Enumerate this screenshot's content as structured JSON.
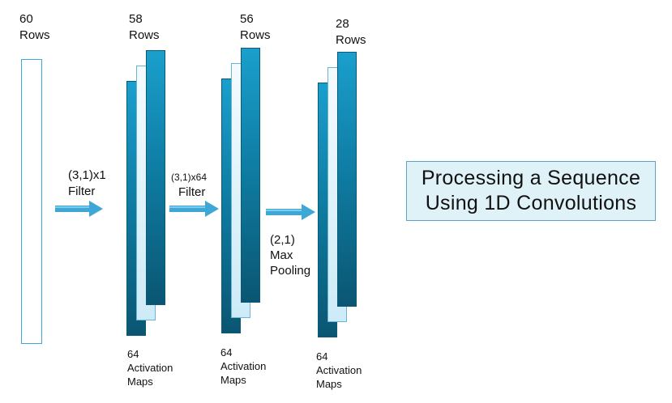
{
  "input": {
    "count": "60",
    "unit": "Rows"
  },
  "stage1": {
    "count": "58",
    "unit": "Rows",
    "maps_count": "64",
    "maps_word1": "Activation",
    "maps_word2": "Maps"
  },
  "stage2": {
    "count": "56",
    "unit": "Rows",
    "maps_count": "64",
    "maps_word1": "Activation",
    "maps_word2": "Maps"
  },
  "stage3": {
    "count": "28",
    "unit": "Rows",
    "maps_count": "64",
    "maps_word1": "Activation",
    "maps_word2": "Maps"
  },
  "op1": {
    "line1": "(3,1)x1",
    "line2": "Filter"
  },
  "op2": {
    "line1": "(3,1)x64",
    "line2": "Filter"
  },
  "op3": {
    "line1": "(2,1)",
    "line2": "Max",
    "line3": "Pooling"
  },
  "title": {
    "line1": "Processing a Sequence",
    "line2": "Using 1D Convolutions"
  },
  "colors": {
    "arrow": "#3fa7d6",
    "map_dark_top": "#1a9fcc",
    "map_dark_bottom": "#0a5672",
    "map_light": "#e0f3fb",
    "title_bg": "#dff2f8"
  }
}
